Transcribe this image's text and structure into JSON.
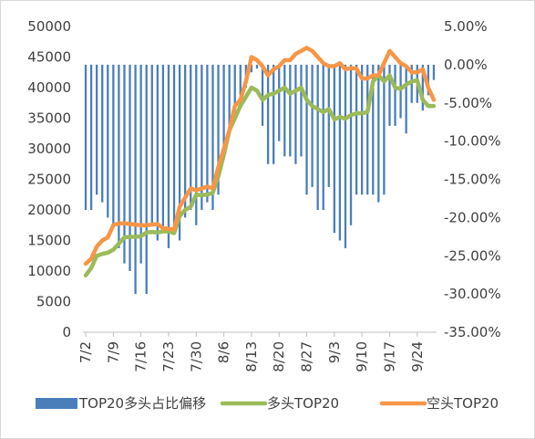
{
  "chart_data": {
    "type": "bar+line",
    "title": "",
    "left_axis": {
      "min": 0,
      "max": 50000,
      "step": 5000,
      "tick_labels": [
        "0",
        "5000",
        "10000",
        "15000",
        "20000",
        "25000",
        "30000",
        "35000",
        "40000",
        "45000",
        "50000"
      ]
    },
    "right_axis": {
      "min": -35,
      "max": 5,
      "step": 5,
      "tick_labels": [
        "-35.00%",
        "-30.00%",
        "-25.00%",
        "-20.00%",
        "-15.00%",
        "-10.00%",
        "-5.00%",
        "0.00%",
        "5.00%"
      ]
    },
    "x_tick_labels": [
      "7/2",
      "7/9",
      "7/16",
      "7/23",
      "7/30",
      "8/6",
      "8/13",
      "8/20",
      "8/27",
      "9/3",
      "9/10",
      "9/17",
      "9/24"
    ],
    "grid": false,
    "legend_position": "bottom",
    "x": [
      "7/2",
      "7/3",
      "7/4",
      "7/5",
      "7/6",
      "7/9",
      "7/10",
      "7/11",
      "7/12",
      "7/13",
      "7/16",
      "7/17",
      "7/18",
      "7/19",
      "7/20",
      "7/23",
      "7/24",
      "7/25",
      "7/26",
      "7/27",
      "7/30",
      "7/31",
      "8/1",
      "8/2",
      "8/3",
      "8/6",
      "8/7",
      "8/8",
      "8/9",
      "8/10",
      "8/13",
      "8/14",
      "8/15",
      "8/16",
      "8/17",
      "8/20",
      "8/21",
      "8/22",
      "8/23",
      "8/24",
      "8/27",
      "8/28",
      "8/29",
      "8/30",
      "8/31",
      "9/3",
      "9/4",
      "9/5",
      "9/6",
      "9/7",
      "9/10",
      "9/11",
      "9/12",
      "9/13",
      "9/14",
      "9/17",
      "9/18",
      "9/19",
      "9/20",
      "9/21",
      "9/24",
      "9/25",
      "9/26",
      "9/27"
    ],
    "series": [
      {
        "name": "TOP20多头占比偏移",
        "axis": "right",
        "style": "bar",
        "color": "#4a7ebb",
        "values": [
          -19,
          -19,
          -17,
          -18,
          -20,
          -21,
          -24,
          -26,
          -27,
          -30,
          -26,
          -30,
          -21,
          -23,
          -22,
          -24,
          -22,
          -23,
          -20,
          -19,
          -21,
          -19,
          -18,
          -19,
          -17,
          -11,
          -9,
          -7,
          -4,
          -3,
          -1,
          -0.5,
          -8,
          -13,
          -13,
          -10,
          -12,
          -12,
          -13,
          -12,
          -17,
          -16,
          -19,
          -19,
          -16,
          -22,
          -23,
          -24,
          -21,
          -17,
          -17,
          -17,
          -17,
          -18,
          -17,
          -8,
          -8,
          -7,
          -9,
          -5,
          -5,
          -6,
          -4,
          -2
        ]
      },
      {
        "name": "多头TOP20",
        "axis": "left",
        "style": "line",
        "color": "#9bbb59",
        "values": [
          9300,
          10500,
          12500,
          12800,
          13000,
          13500,
          14500,
          15500,
          15600,
          15600,
          15700,
          16300,
          16400,
          16300,
          16500,
          16500,
          16200,
          19000,
          20000,
          20500,
          22500,
          22400,
          22500,
          22800,
          25500,
          29000,
          33000,
          35000,
          37000,
          38500,
          40000,
          39500,
          38000,
          38800,
          39000,
          39500,
          40000,
          39000,
          39500,
          40000,
          38000,
          37000,
          36500,
          36000,
          36500,
          34800,
          35200,
          34900,
          35500,
          35800,
          35800,
          36000,
          41000,
          42000,
          41000,
          42000,
          40000,
          39800,
          40500,
          41000,
          41200,
          38000,
          37000,
          37000
        ]
      },
      {
        "name": "空头TOP20",
        "axis": "left",
        "style": "line",
        "color": "#f79646",
        "values": [
          11200,
          12000,
          14000,
          15000,
          15500,
          17500,
          17800,
          17800,
          17700,
          17600,
          17500,
          17500,
          17600,
          17700,
          17000,
          16900,
          16800,
          20500,
          22000,
          23500,
          23200,
          23500,
          23800,
          23500,
          27000,
          30000,
          33000,
          37000,
          38000,
          41000,
          45000,
          44500,
          43500,
          42000,
          43000,
          43500,
          44500,
          44500,
          45500,
          46000,
          46500,
          46000,
          45000,
          44000,
          43500,
          43500,
          44000,
          43000,
          43200,
          43100,
          41500,
          41500,
          42000,
          42000,
          44000,
          46000,
          45000,
          44000,
          43500,
          42500,
          42500,
          43000,
          40000,
          38000
        ]
      }
    ]
  }
}
